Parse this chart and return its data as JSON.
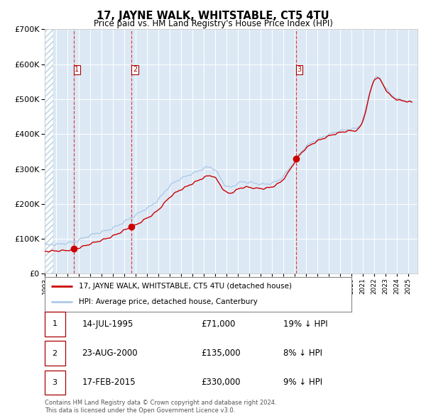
{
  "title": "17, JAYNE WALK, WHITSTABLE, CT5 4TU",
  "subtitle": "Price paid vs. HM Land Registry's House Price Index (HPI)",
  "sales": [
    {
      "num": 1,
      "date": "14-JUL-1995",
      "price": 71000,
      "year": 1995.54,
      "hpi_diff": "19% ↓ HPI"
    },
    {
      "num": 2,
      "date": "23-AUG-2000",
      "price": 135000,
      "year": 2000.64,
      "hpi_diff": "8% ↓ HPI"
    },
    {
      "num": 3,
      "date": "17-FEB-2015",
      "price": 330000,
      "year": 2015.12,
      "hpi_diff": "9% ↓ HPI"
    }
  ],
  "legend_line1": "17, JAYNE WALK, WHITSTABLE, CT5 4TU (detached house)",
  "legend_line2": "HPI: Average price, detached house, Canterbury",
  "footer1": "Contains HM Land Registry data © Crown copyright and database right 2024.",
  "footer2": "This data is licensed under the Open Government Licence v3.0.",
  "hpi_color": "#adc9e8",
  "price_color": "#cc0000",
  "bg_color": "#dce9f5",
  "hatch_color": "#b0c8e0",
  "ylim": [
    0,
    700000
  ],
  "xlim_start": 1993.0,
  "xlim_end": 2025.8
}
